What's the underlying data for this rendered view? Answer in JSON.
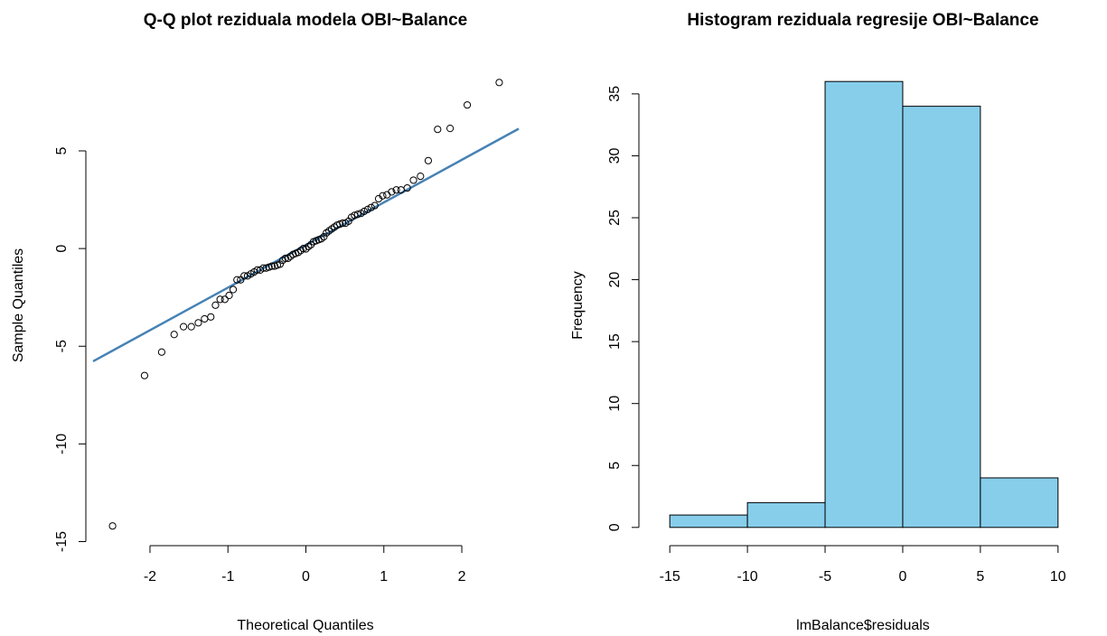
{
  "chart_data": [
    {
      "type": "scatter",
      "title": "Q-Q plot reziduala modela OBI~Balance",
      "x_label": "Theoretical Quantiles",
      "y_label": "Sample Quantiles",
      "x": [
        -2.48,
        -2.07,
        -1.85,
        -1.69,
        -1.57,
        -1.47,
        -1.38,
        -1.3,
        -1.22,
        -1.16,
        -1.1,
        -1.04,
        -0.985,
        -0.933,
        -0.884,
        -0.837,
        -0.792,
        -0.748,
        -0.706,
        -0.664,
        -0.624,
        -0.585,
        -0.547,
        -0.509,
        -0.473,
        -0.436,
        -0.401,
        -0.366,
        -0.331,
        -0.297,
        -0.263,
        -0.23,
        -0.197,
        -0.164,
        -0.131,
        -0.098,
        -0.065,
        -0.033,
        0,
        0.033,
        0.065,
        0.098,
        0.131,
        0.164,
        0.197,
        0.23,
        0.263,
        0.297,
        0.331,
        0.366,
        0.401,
        0.436,
        0.473,
        0.509,
        0.547,
        0.585,
        0.624,
        0.664,
        0.706,
        0.748,
        0.792,
        0.837,
        0.884,
        0.933,
        0.985,
        1.04,
        1.1,
        1.16,
        1.22,
        1.3,
        1.38,
        1.47,
        1.57,
        1.69,
        1.85,
        2.07,
        2.48
      ],
      "y": [
        -14.2,
        -6.5,
        -5.3,
        -4.4,
        -4.0,
        -4.0,
        -3.8,
        -3.6,
        -3.5,
        -2.9,
        -2.6,
        -2.6,
        -2.4,
        -2.1,
        -1.6,
        -1.6,
        -1.4,
        -1.4,
        -1.3,
        -1.2,
        -1.1,
        -1.1,
        -1.0,
        -1.0,
        -0.95,
        -0.9,
        -0.9,
        -0.85,
        -0.8,
        -0.6,
        -0.5,
        -0.5,
        -0.4,
        -0.3,
        -0.25,
        -0.2,
        -0.1,
        0.0,
        -0.02,
        0.1,
        0.2,
        0.35,
        0.4,
        0.45,
        0.5,
        0.6,
        0.8,
        0.9,
        1.0,
        1.1,
        1.2,
        1.25,
        1.3,
        1.3,
        1.4,
        1.6,
        1.7,
        1.75,
        1.8,
        1.9,
        2.0,
        2.1,
        2.2,
        2.55,
        2.7,
        2.75,
        2.9,
        3.0,
        3.0,
        3.1,
        3.5,
        3.7,
        4.5,
        6.1,
        6.15,
        7.35,
        8.5
      ],
      "qqline": {
        "intercept": 0.18,
        "slope": 2.18,
        "color": "#4682b4"
      },
      "xlim": [
        -2.73,
        2.73
      ],
      "ylim": [
        -15.3,
        9.3
      ],
      "xticks": [
        -2,
        -1,
        0,
        1,
        2
      ],
      "yticks": [
        -15,
        -10,
        -5,
        0,
        5
      ]
    },
    {
      "type": "histogram",
      "title": "Histogram reziduala regresije OBI~Balance",
      "x_label": "lmBalance$residuals",
      "y_label": "Frequency",
      "bins": [
        -15,
        -10,
        -5,
        0,
        5,
        10
      ],
      "values": [
        1,
        2,
        36,
        34,
        4
      ],
      "color": "#87ceeb",
      "xlim": [
        -16,
        11
      ],
      "ylim": [
        -1.4,
        37.4
      ],
      "xticks": [
        -15,
        -10,
        -5,
        0,
        5,
        10
      ],
      "yticks": [
        0,
        5,
        10,
        15,
        20,
        25,
        30,
        35
      ]
    }
  ]
}
